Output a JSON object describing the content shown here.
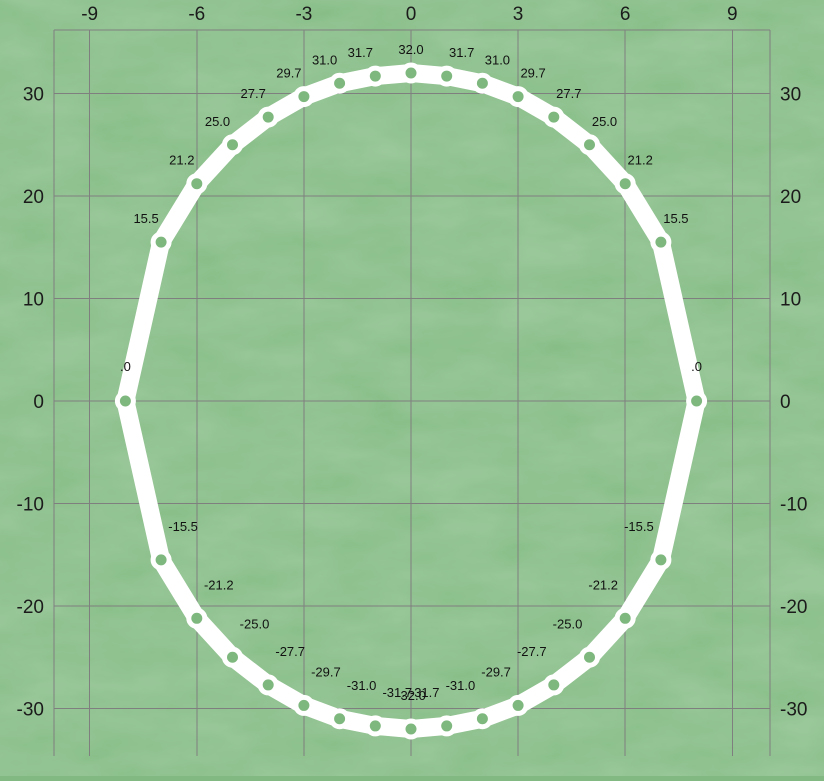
{
  "chart_data": {
    "type": "line",
    "grid": true,
    "x_ticks": [
      -9,
      -6,
      -3,
      0,
      3,
      6,
      9
    ],
    "y_ticks": [
      -30,
      -20,
      -10,
      0,
      10,
      20,
      30
    ],
    "tick_labels": {
      "x_top": [
        "-9",
        "-6",
        "-3",
        "0",
        "3",
        "6",
        "9"
      ],
      "y_left": [
        "30",
        "20",
        "10",
        "0",
        "-10",
        "-20",
        "-30"
      ],
      "y_right": [
        "30",
        "20",
        "10",
        "0",
        "-10",
        "-20",
        "-30"
      ]
    },
    "xlim": [
      -10,
      10
    ],
    "ylim": [
      -34,
      35
    ],
    "series": [
      {
        "marker": "hollow-circle",
        "closed": true,
        "points": [
          {
            "x": 0,
            "y": 32.0,
            "label": "32.0"
          },
          {
            "x": 1,
            "y": 31.7,
            "label": "31.7"
          },
          {
            "x": 2,
            "y": 31.0,
            "label": "31.0"
          },
          {
            "x": 3,
            "y": 29.7,
            "label": "29.7"
          },
          {
            "x": 4,
            "y": 27.7,
            "label": "27.7"
          },
          {
            "x": 5,
            "y": 25.0,
            "label": "25.0"
          },
          {
            "x": 6,
            "y": 21.2,
            "label": "21.2"
          },
          {
            "x": 7,
            "y": 15.5,
            "label": "15.5"
          },
          {
            "x": 8,
            "y": 0,
            "label": ".0"
          },
          {
            "x": 7,
            "y": -15.5,
            "label": "-15.5"
          },
          {
            "x": 6,
            "y": -21.2,
            "label": "-21.2"
          },
          {
            "x": 5,
            "y": -25.0,
            "label": "-25.0"
          },
          {
            "x": 4,
            "y": -27.7,
            "label": "-27.7"
          },
          {
            "x": 3,
            "y": -29.7,
            "label": "-29.7"
          },
          {
            "x": 2,
            "y": -31.0,
            "label": "-31.0"
          },
          {
            "x": 1,
            "y": -31.7,
            "label": "-31.7"
          },
          {
            "x": 0,
            "y": -32.0,
            "label": "-32.0"
          },
          {
            "x": -1,
            "y": -31.7,
            "label": "-31.7"
          },
          {
            "x": -2,
            "y": -31.0,
            "label": "-31.0"
          },
          {
            "x": -3,
            "y": -29.7,
            "label": "-29.7"
          },
          {
            "x": -4,
            "y": -27.7,
            "label": "-27.7"
          },
          {
            "x": -5,
            "y": -25.0,
            "label": "-25.0"
          },
          {
            "x": -6,
            "y": -21.2,
            "label": "-21.2"
          },
          {
            "x": -7,
            "y": -15.5,
            "label": "-15.5"
          },
          {
            "x": -8,
            "y": 0,
            "label": ".0"
          },
          {
            "x": -7,
            "y": 15.5,
            "label": "15.5"
          },
          {
            "x": -6,
            "y": 21.2,
            "label": "21.2"
          },
          {
            "x": -5,
            "y": 25.0,
            "label": "25.0"
          },
          {
            "x": -4,
            "y": 27.7,
            "label": "27.7"
          },
          {
            "x": -3,
            "y": 29.7,
            "label": "29.7"
          },
          {
            "x": -2,
            "y": 31.0,
            "label": "31.0"
          },
          {
            "x": -1,
            "y": 31.7,
            "label": "31.7"
          }
        ]
      }
    ]
  },
  "colors": {
    "background": "#82b982",
    "grid": "#7f7f7f",
    "line": "#ffffff",
    "marker_fill": "#7fb87f",
    "marker_stroke": "#ffffff",
    "text": "#1b1b1b"
  }
}
